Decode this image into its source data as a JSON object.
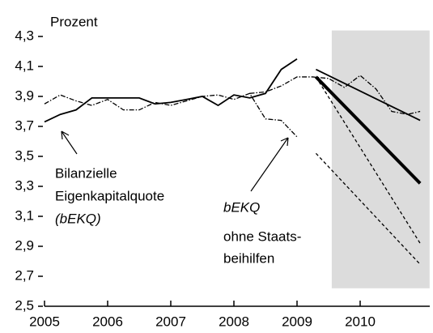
{
  "chart_data": {
    "type": "line",
    "y_label": "Prozent",
    "xlim": [
      2005,
      2011.1
    ],
    "ylim": [
      2.5,
      4.3
    ],
    "xticks": [
      2005,
      2006,
      2007,
      2008,
      2009,
      2010
    ],
    "yticks": [
      {
        "value": 2.5,
        "label": "2,5"
      },
      {
        "value": 2.7,
        "label": "2,7"
      },
      {
        "value": 2.9,
        "label": "2,9"
      },
      {
        "value": 3.1,
        "label": "3,1"
      },
      {
        "value": 3.3,
        "label": "3,3"
      },
      {
        "value": 3.5,
        "label": "3,5"
      },
      {
        "value": 3.7,
        "label": "3,7"
      },
      {
        "value": 3.9,
        "label": "3,9"
      },
      {
        "value": 4.1,
        "label": "4,1"
      },
      {
        "value": 4.3,
        "label": "4,3"
      }
    ],
    "shade": {
      "x": [
        2009.55,
        2011.1
      ],
      "y": [
        2.62,
        4.34
      ],
      "color": "#dcdcdc"
    },
    "series": [
      {
        "color": "#000000",
        "style": "solid",
        "x": [
          2005,
          2005.25,
          2005.5,
          2005.75,
          2006,
          2006.25,
          2006.5,
          2006.75,
          2007,
          2007.25,
          2007.5,
          2007.75,
          2008,
          2008.25,
          2008.5,
          2008.75,
          2009
        ],
        "values": [
          3.73,
          3.78,
          3.81,
          3.89,
          3.89,
          3.89,
          3.89,
          3.85,
          3.86,
          3.88,
          3.9,
          3.84,
          3.91,
          3.89,
          3.92,
          4.08,
          4.15
        ]
      },
      {
        "color": "#000000",
        "style": "dashdot",
        "x": [
          2005,
          2005.25,
          2005.5,
          2005.75,
          2006,
          2006.25,
          2006.5,
          2006.75,
          2007,
          2007.25,
          2007.5,
          2007.75,
          2008,
          2008.25,
          2008.5,
          2008.75,
          2009
        ],
        "values": [
          3.85,
          3.91,
          3.87,
          3.84,
          3.88,
          3.81,
          3.81,
          3.86,
          3.84,
          3.87,
          3.9,
          3.91,
          3.88,
          3.92,
          3.75,
          3.74,
          3.63
        ]
      },
      {
        "color": "#000000",
        "style": "dashdot",
        "x": [
          2008.25,
          2008.5,
          2008.75,
          2009,
          2009.25,
          2009.5,
          2009.75,
          2010,
          2010.25,
          2010.5,
          2010.75,
          2010.95
        ],
        "values": [
          3.92,
          3.93,
          3.97,
          4.03,
          4.03,
          4.02,
          3.96,
          4.04,
          3.95,
          3.8,
          3.78,
          3.8
        ]
      },
      {
        "color": "#000000",
        "style": "solid",
        "x": [
          2009.3,
          2010.95
        ],
        "values": [
          4.08,
          3.74
        ]
      },
      {
        "color": "#000000",
        "style": "bold",
        "x": [
          2009.3,
          2010.95
        ],
        "values": [
          4.03,
          3.32
        ]
      },
      {
        "color": "#000000",
        "style": "dashed",
        "x": [
          2009.3,
          2010.95
        ],
        "values": [
          4.03,
          2.92
        ]
      },
      {
        "color": "#000000",
        "style": "dashed",
        "x": [
          2009.3,
          2010.95
        ],
        "values": [
          3.52,
          2.78
        ]
      }
    ],
    "annotations": [
      {
        "lines": [
          "Bilanzielle",
          "Eigenkapitalquote",
          "(bEKQ)"
        ]
      },
      {
        "lines": [
          "bEKQ",
          "ohne Staats-",
          "beihilfen"
        ]
      }
    ]
  }
}
